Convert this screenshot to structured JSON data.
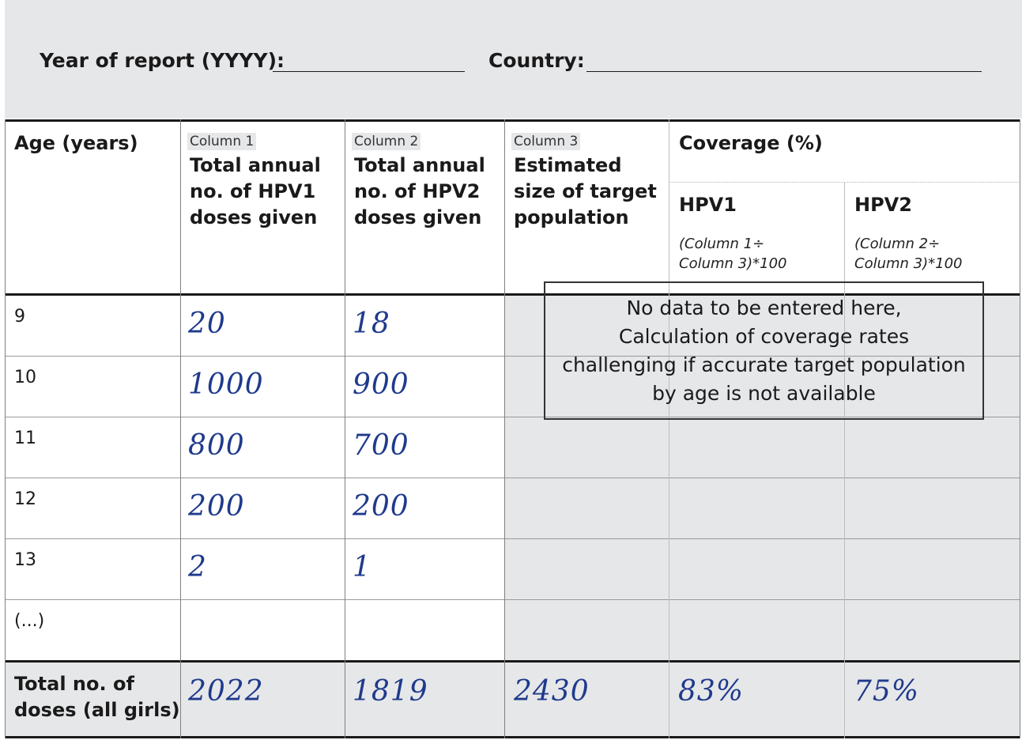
{
  "header": {
    "year_label": "Year of report (YYYY):",
    "country_label": "Country:"
  },
  "table": {
    "col_age": "Age (years)",
    "col1_tag": "Column 1",
    "col1_title_lines": [
      "Total annual",
      "no. of HPV1",
      "doses given"
    ],
    "col2_tag": "Column 2",
    "col2_title_lines": [
      "Total annual",
      "no. of HPV2",
      "doses given"
    ],
    "col3_tag": "Column 3",
    "col3_title_lines": [
      "Estimated",
      "size of target",
      "population"
    ],
    "coverage_title": "Coverage (%)",
    "hpv1_title": "HPV1",
    "hpv1_formula_lines": [
      "(Column 1÷",
      "Column 3)*100"
    ],
    "hpv2_title": "HPV2",
    "hpv2_formula_lines": [
      "(Column 2÷",
      "Column 3)*100"
    ],
    "rows": [
      {
        "age": "9",
        "hpv1": "20",
        "hpv2": "18"
      },
      {
        "age": "10",
        "hpv1": "1000",
        "hpv2": "900"
      },
      {
        "age": "11",
        "hpv1": "800",
        "hpv2": "700"
      },
      {
        "age": "12",
        "hpv1": "200",
        "hpv2": "200"
      },
      {
        "age": "13",
        "hpv1": "2",
        "hpv2": "1"
      },
      {
        "age": "(...)",
        "hpv1": "",
        "hpv2": ""
      }
    ],
    "note_lines": [
      "No data to be entered here,",
      "Calculation of coverage rates",
      "challenging if accurate target population",
      "by age is not available"
    ],
    "total_label_lines": [
      "Total no. of",
      "doses (all girls)"
    ],
    "totals": {
      "hpv1": "2022",
      "hpv2": "1819",
      "target_population": "2430",
      "coverage_hpv1": "83%",
      "coverage_hpv2": "75%"
    }
  }
}
